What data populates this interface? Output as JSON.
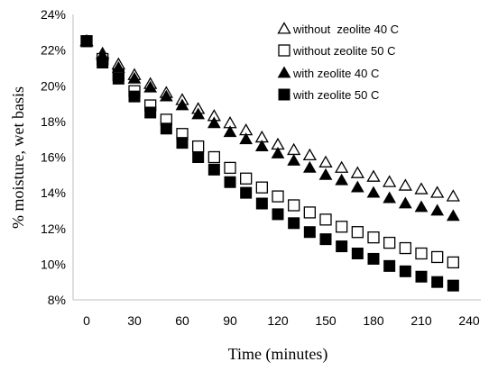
{
  "chart_data": {
    "type": "scatter",
    "xlabel": "Time (minutes)",
    "ylabel": "% moisture, wet basis",
    "xlim": [
      0,
      240
    ],
    "ylim": [
      8,
      24
    ],
    "x_ticks": [
      "0",
      "30",
      "60",
      "90",
      "120",
      "150",
      "180",
      "210",
      "240"
    ],
    "y_ticks": [
      "8%",
      "10%",
      "12%",
      "14%",
      "16%",
      "18%",
      "20%",
      "22%",
      "24%"
    ],
    "grid": false,
    "legend_position": "top-right",
    "x": [
      0,
      10,
      20,
      30,
      40,
      50,
      60,
      70,
      80,
      90,
      100,
      110,
      120,
      130,
      140,
      150,
      160,
      170,
      180,
      190,
      200,
      210,
      220,
      230
    ],
    "series": [
      {
        "name": "without  zeolite 40 C",
        "marker": "triangle-open",
        "values": [
          22.5,
          21.8,
          21.2,
          20.6,
          20.1,
          19.6,
          19.2,
          18.7,
          18.3,
          17.9,
          17.5,
          17.1,
          16.7,
          16.4,
          16.1,
          15.7,
          15.4,
          15.1,
          14.9,
          14.6,
          14.4,
          14.2,
          14.0,
          13.8
        ]
      },
      {
        "name": "without zeolite 50 C",
        "marker": "square-open",
        "values": [
          22.5,
          21.5,
          20.6,
          19.7,
          18.9,
          18.1,
          17.3,
          16.6,
          16.0,
          15.4,
          14.8,
          14.3,
          13.8,
          13.3,
          12.9,
          12.5,
          12.1,
          11.8,
          11.5,
          11.2,
          10.9,
          10.6,
          10.4,
          10.1
        ]
      },
      {
        "name": "with zeolite 40 C",
        "marker": "triangle-filled",
        "values": [
          22.5,
          21.7,
          21.0,
          20.4,
          19.9,
          19.4,
          18.9,
          18.4,
          17.9,
          17.4,
          17.0,
          16.6,
          16.2,
          15.8,
          15.4,
          15.0,
          14.7,
          14.3,
          14.0,
          13.7,
          13.4,
          13.2,
          13.0,
          12.7
        ]
      },
      {
        "name": "with zeolite 50 C",
        "marker": "square-filled",
        "values": [
          22.5,
          21.3,
          20.4,
          19.4,
          18.5,
          17.6,
          16.8,
          16.0,
          15.3,
          14.6,
          14.0,
          13.4,
          12.8,
          12.3,
          11.8,
          11.4,
          11.0,
          10.6,
          10.3,
          9.9,
          9.6,
          9.3,
          9.0,
          8.8
        ]
      }
    ]
  }
}
